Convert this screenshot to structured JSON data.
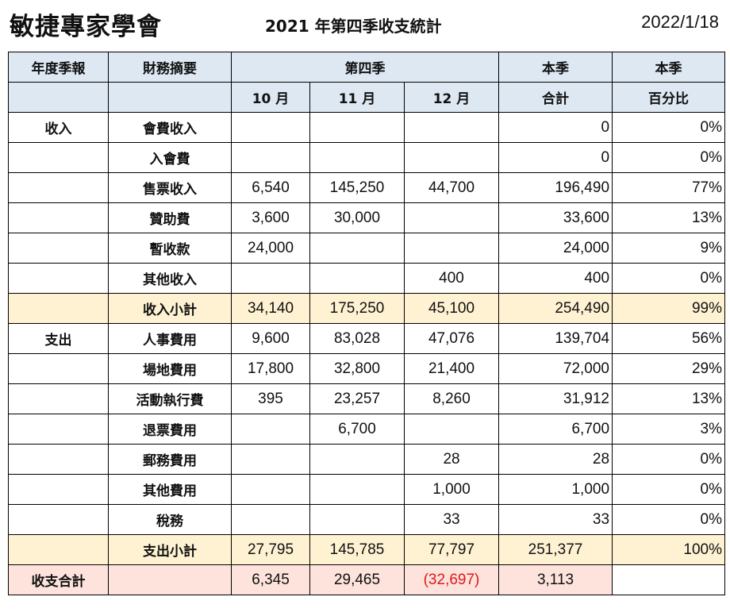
{
  "header": {
    "org": "敏捷專家學會",
    "title": "2021 年第四季收支統計",
    "date": "2022/1/18"
  },
  "columns": {
    "col1": "年度季報",
    "col2": "財務摘要",
    "quarter": "第四季",
    "total_top": "本季",
    "total_bottom": "合計",
    "pct_top": "本季",
    "pct_bottom": "百分比",
    "months": [
      "10 月",
      "11 月",
      "12 月"
    ]
  },
  "rows": [
    {
      "cat": "收入",
      "item": "會費收入",
      "m10": "",
      "m11": "",
      "m12": "",
      "total": "0",
      "pct": "0%"
    },
    {
      "cat": "",
      "item": "入會費",
      "m10": "",
      "m11": "",
      "m12": "",
      "total": "0",
      "pct": "0%"
    },
    {
      "cat": "",
      "item": "售票收入",
      "m10": "6,540",
      "m11": "145,250",
      "m12": "44,700",
      "total": "196,490",
      "pct": "77%"
    },
    {
      "cat": "",
      "item": "贊助費",
      "m10": "3,600",
      "m11": "30,000",
      "m12": "",
      "total": "33,600",
      "pct": "13%"
    },
    {
      "cat": "",
      "item": "暫收款",
      "m10": "24,000",
      "m11": "",
      "m12": "",
      "total": "24,000",
      "pct": "9%"
    },
    {
      "cat": "",
      "item": "其他收入",
      "m10": "",
      "m11": "",
      "m12": "400",
      "total": "400",
      "pct": "0%"
    },
    {
      "cat": "",
      "item": "收入小計",
      "m10": "34,140",
      "m11": "175,250",
      "m12": "45,100",
      "total": "254,490",
      "pct": "99%"
    },
    {
      "cat": "支出",
      "item": "人事費用",
      "m10": "9,600",
      "m11": "83,028",
      "m12": "47,076",
      "total": "139,704",
      "pct": "56%"
    },
    {
      "cat": "",
      "item": "場地費用",
      "m10": "17,800",
      "m11": "32,800",
      "m12": "21,400",
      "total": "72,000",
      "pct": "29%"
    },
    {
      "cat": "",
      "item": "活動執行費",
      "m10": "395",
      "m11": "23,257",
      "m12": "8,260",
      "total": "31,912",
      "pct": "13%"
    },
    {
      "cat": "",
      "item": "退票費用",
      "m10": "",
      "m11": "6,700",
      "m12": "",
      "total": "6,700",
      "pct": "3%"
    },
    {
      "cat": "",
      "item": "郵務費用",
      "m10": "",
      "m11": "",
      "m12": "28",
      "total": "28",
      "pct": "0%"
    },
    {
      "cat": "",
      "item": "其他費用",
      "m10": "",
      "m11": "",
      "m12": "1,000",
      "total": "1,000",
      "pct": "0%"
    },
    {
      "cat": "",
      "item": "稅務",
      "m10": "",
      "m11": "",
      "m12": "33",
      "total": "33",
      "pct": "0%"
    },
    {
      "cat": "",
      "item": "支出小計",
      "m10": "27,795",
      "m11": "145,785",
      "m12": "77,797",
      "total": "251,377",
      "pct": "100%"
    }
  ],
  "net": {
    "label": "收支合計",
    "m10": "6,345",
    "m11": "29,465",
    "m12": "(32,697)",
    "total": "3,113"
  },
  "colors": {
    "header_bg": "#dde8f3",
    "subtotal_bg": "#fff2d3",
    "net_bg": "#fde3dc",
    "negative": "#e0181d"
  }
}
